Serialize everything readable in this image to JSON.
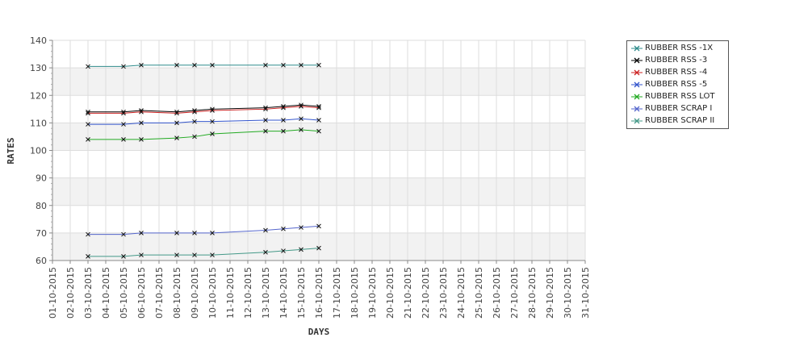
{
  "chart_data": {
    "type": "line",
    "xlabel": "DAYS",
    "ylabel": "RATES",
    "ylim": [
      60,
      140
    ],
    "yticks": [
      60,
      70,
      80,
      90,
      100,
      110,
      120,
      130,
      140
    ],
    "grid": true,
    "legend_position": "right",
    "x_ticks": [
      "01-10-2015",
      "02-10-2015",
      "03-10-2015",
      "04-10-2015",
      "05-10-2015",
      "06-10-2015",
      "07-10-2015",
      "08-10-2015",
      "09-10-2015",
      "10-10-2015",
      "11-10-2015",
      "12-10-2015",
      "13-10-2015",
      "14-10-2015",
      "15-10-2015",
      "16-10-2015",
      "17-10-2015",
      "18-10-2015",
      "19-10-2015",
      "20-10-2015",
      "21-10-2015",
      "22-10-2015",
      "23-10-2015",
      "24-10-2015",
      "25-10-2015",
      "26-10-2015",
      "27-10-2015",
      "28-10-2015",
      "29-10-2015",
      "30-10-2015",
      "31-10-2015"
    ],
    "x": [
      "03-10-2015",
      "05-10-2015",
      "06-10-2015",
      "08-10-2015",
      "09-10-2015",
      "10-10-2015",
      "13-10-2015",
      "14-10-2015",
      "15-10-2015",
      "16-10-2015"
    ],
    "series": [
      {
        "name": "RUBBER RSS -1X",
        "color": "#2e8b8b",
        "values": [
          130.5,
          130.5,
          131,
          131,
          131,
          131,
          131,
          131,
          131,
          131
        ]
      },
      {
        "name": "RUBBER RSS -3",
        "color": "#000000",
        "values": [
          114,
          114,
          114.5,
          114,
          114.5,
          115,
          115.5,
          116,
          116.5,
          116
        ]
      },
      {
        "name": "RUBBER RSS -4",
        "color": "#cc2222",
        "values": [
          113.5,
          113.5,
          114,
          113.5,
          114,
          114.5,
          115,
          115.5,
          116,
          115.5
        ]
      },
      {
        "name": "RUBBER RSS -5",
        "color": "#3355cc",
        "values": [
          109.5,
          109.5,
          110,
          110,
          110.5,
          110.5,
          111,
          111,
          111.5,
          111
        ]
      },
      {
        "name": "RUBBER RSS LOT",
        "color": "#22aa22",
        "values": [
          104,
          104,
          104,
          104.5,
          105,
          106,
          107,
          107,
          107.5,
          107
        ]
      },
      {
        "name": "RUBBER SCRAP I",
        "color": "#5566cc",
        "values": [
          69.5,
          69.5,
          70,
          70,
          70,
          70,
          71,
          71.5,
          72,
          72.5
        ]
      },
      {
        "name": "RUBBER SCRAP II",
        "color": "#449988",
        "values": [
          61.5,
          61.5,
          62,
          62,
          62,
          62,
          63,
          63.5,
          64,
          64.5
        ]
      }
    ]
  }
}
